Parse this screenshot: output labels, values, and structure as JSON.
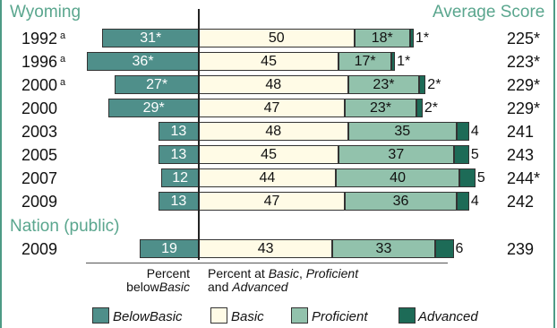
{
  "colors": {
    "below_basic": "#4f8f8a",
    "basic": "#fffbe6",
    "proficient": "#92c2ac",
    "advanced": "#1d6b57",
    "header_text": "#5aa68e",
    "border": "#4d9a85"
  },
  "headers": {
    "state": "Wyoming",
    "average_score": "Average Score",
    "nation": "Nation (public)"
  },
  "footnotes": {
    "below_line1": "Percent",
    "below_line2": "below",
    "below_line2_em": "Basic",
    "at_line1_a": "Percent at ",
    "at_line1_em1": "Basic",
    "at_line1_b": ", ",
    "at_line1_em2": "Proficient",
    "at_line2_a": "and ",
    "at_line2_em": "Advanced"
  },
  "legend": [
    {
      "key": "below_basic",
      "label": "BelowBasic"
    },
    {
      "key": "basic",
      "label": "Basic"
    },
    {
      "key": "proficient",
      "label": "Proficient"
    },
    {
      "key": "advanced",
      "label": "Advanced"
    }
  ],
  "chart_data": {
    "type": "bar",
    "stacked": true,
    "categories": [
      "1992",
      "1996",
      "2000",
      "2000",
      "2003",
      "2005",
      "2007",
      "2009",
      "2009"
    ],
    "year_notes": [
      "a",
      "a",
      "a",
      "",
      "",
      "",
      "",
      "",
      ""
    ],
    "groups": [
      "Wyoming",
      "Wyoming",
      "Wyoming",
      "Wyoming",
      "Wyoming",
      "Wyoming",
      "Wyoming",
      "Wyoming",
      "Nation (public)"
    ],
    "series": [
      {
        "name": "BelowBasic",
        "values": [
          31,
          36,
          27,
          29,
          13,
          13,
          12,
          13,
          19
        ],
        "labels": [
          "31*",
          "36*",
          "27*",
          "29*",
          "13",
          "13",
          "12",
          "13",
          "19"
        ]
      },
      {
        "name": "Basic",
        "values": [
          50,
          45,
          48,
          47,
          48,
          45,
          44,
          47,
          43
        ],
        "labels": [
          "50",
          "45",
          "48",
          "47",
          "48",
          "45",
          "44",
          "47",
          "43"
        ]
      },
      {
        "name": "Proficient",
        "values": [
          18,
          17,
          23,
          23,
          35,
          37,
          40,
          36,
          33
        ],
        "labels": [
          "18*",
          "17*",
          "23*",
          "23*",
          "35",
          "37",
          "40",
          "36",
          "33"
        ]
      },
      {
        "name": "Advanced",
        "values": [
          1,
          1,
          2,
          2,
          4,
          5,
          5,
          4,
          6
        ],
        "labels": [
          "1*",
          "1*",
          "2*",
          "2*",
          "4",
          "5",
          "5",
          "4",
          "6"
        ]
      }
    ],
    "average_scores": [
      "225*",
      "223*",
      "229*",
      "229*",
      "241",
      "243",
      "244*",
      "242",
      "239"
    ]
  }
}
